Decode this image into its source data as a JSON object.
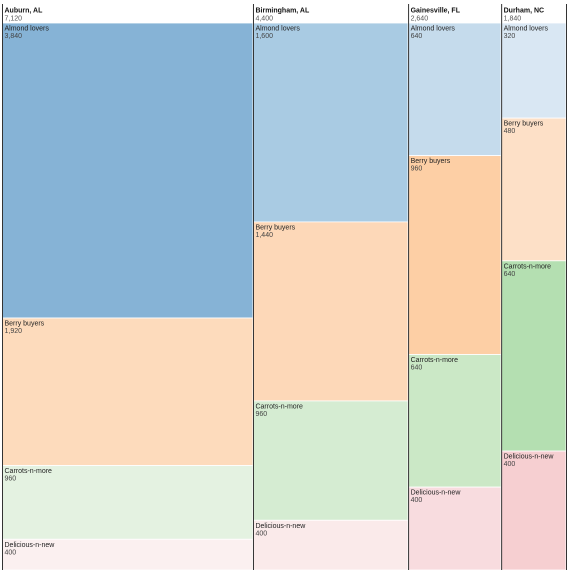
{
  "chart_data": {
    "type": "marimekko",
    "title": "",
    "xlabel": "",
    "ylabel": "",
    "legend": "none",
    "grid": false,
    "columns": [
      {
        "name": "Auburn, AL",
        "total": "7,120",
        "segments": [
          {
            "name": "Almond lovers",
            "value": 3840,
            "label": "3,840"
          },
          {
            "name": "Berry buyers",
            "value": 1920,
            "label": "1,920"
          },
          {
            "name": "Carrots-n-more",
            "value": 960,
            "label": "960"
          },
          {
            "name": "Delicious-n-new",
            "value": 400,
            "label": "400"
          }
        ]
      },
      {
        "name": "Birmingham, AL",
        "total": "4,400",
        "segments": [
          {
            "name": "Almond lovers",
            "value": 1600,
            "label": "1,600"
          },
          {
            "name": "Berry buyers",
            "value": 1440,
            "label": "1,440"
          },
          {
            "name": "Carrots-n-more",
            "value": 960,
            "label": "960"
          },
          {
            "name": "Delicious-n-new",
            "value": 400,
            "label": "400"
          }
        ]
      },
      {
        "name": "Gainesville, FL",
        "total": "2,640",
        "segments": [
          {
            "name": "Almond lovers",
            "value": 640,
            "label": "640"
          },
          {
            "name": "Berry buyers",
            "value": 960,
            "label": "960"
          },
          {
            "name": "Carrots-n-more",
            "value": 640,
            "label": "640"
          },
          {
            "name": "Delicious-n-new",
            "value": 400,
            "label": "400"
          }
        ]
      },
      {
        "name": "Durham, NC",
        "total": "1,840",
        "segments": [
          {
            "name": "Almond lovers",
            "value": 320,
            "label": "320"
          },
          {
            "name": "Berry buyers",
            "value": 480,
            "label": "480"
          },
          {
            "name": "Carrots-n-more",
            "value": 640,
            "label": "640"
          },
          {
            "name": "Delicious-n-new",
            "value": 400,
            "label": "400"
          }
        ]
      }
    ],
    "colors": {
      "Almond lovers": [
        "#86b3d6",
        "#a9cbe3",
        "#c5dbec",
        "#d9e7f3"
      ],
      "Berry buyers": [
        "#fddbbc",
        "#fdd8b8",
        "#fdcfa5",
        "#fde0c7"
      ],
      "Carrots-n-more": [
        "#e4f2e1",
        "#d5ecd2",
        "#cbe8c6",
        "#b4dfb1"
      ],
      "Delicious-n-new": [
        "#fbf0f0",
        "#faeaea",
        "#f8dcdf",
        "#f6cfd1"
      ]
    }
  }
}
